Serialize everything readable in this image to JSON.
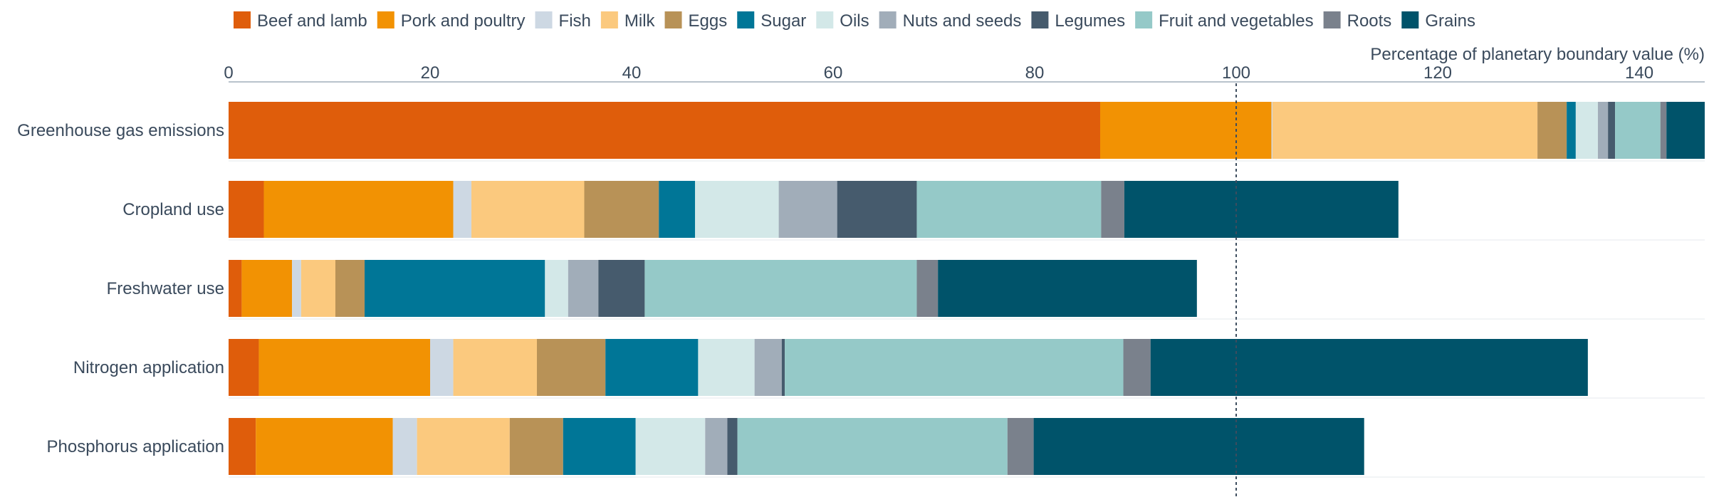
{
  "colors": {
    "axis_line": "#b8c2cc",
    "grid": "#e6e9ed",
    "reference_line": "#3d4d5e",
    "text": "#3a4a5c"
  },
  "chart_data": {
    "type": "bar",
    "orientation": "horizontal",
    "stacked": true,
    "xlabel": "Percentage of planetary boundary value (%)",
    "xlim": [
      0,
      146.5
    ],
    "xticks": [
      0,
      20,
      40,
      60,
      80,
      100,
      120,
      140
    ],
    "reference_line": 100,
    "legend_position": "top",
    "grid": true,
    "categories": [
      "Greenhouse gas emissions",
      "Cropland use",
      "Freshwater use",
      "Nitrogen application",
      "Phosphorus application"
    ],
    "series": [
      {
        "name": "Beef and lamb",
        "color": "#df5d0b",
        "values": [
          86.5,
          3.5,
          1.3,
          3.0,
          2.7
        ]
      },
      {
        "name": "Pork and poultry",
        "color": "#f29203",
        "values": [
          17.0,
          18.8,
          5.0,
          17.0,
          13.6
        ]
      },
      {
        "name": "Fish",
        "color": "#cdd8e3",
        "values": [
          0.1,
          1.8,
          0.9,
          2.3,
          2.4
        ]
      },
      {
        "name": "Milk",
        "color": "#fbc97e",
        "values": [
          26.3,
          11.2,
          3.4,
          8.3,
          9.2
        ]
      },
      {
        "name": "Eggs",
        "color": "#b89257",
        "values": [
          2.9,
          7.4,
          2.9,
          6.8,
          5.3
        ]
      },
      {
        "name": "Sugar",
        "color": "#007697",
        "values": [
          0.9,
          3.6,
          17.9,
          9.2,
          7.2
        ]
      },
      {
        "name": "Oils",
        "color": "#d3e8e8",
        "values": [
          2.2,
          8.3,
          2.3,
          5.6,
          6.9
        ]
      },
      {
        "name": "Nuts and seeds",
        "color": "#a1adb9",
        "values": [
          1.0,
          5.8,
          3.0,
          2.7,
          2.2
        ]
      },
      {
        "name": "Legumes",
        "color": "#465b6d",
        "values": [
          0.7,
          7.9,
          4.6,
          0.3,
          1.0
        ]
      },
      {
        "name": "Fruit and vegetables",
        "color": "#95c9c8",
        "values": [
          4.5,
          18.3,
          27.0,
          33.6,
          26.8
        ]
      },
      {
        "name": "Roots",
        "color": "#7a818c",
        "values": [
          0.6,
          2.3,
          2.1,
          2.7,
          2.6
        ]
      },
      {
        "name": "Grains",
        "color": "#00536a",
        "values": [
          3.8,
          27.2,
          25.7,
          43.4,
          32.8
        ]
      }
    ]
  }
}
